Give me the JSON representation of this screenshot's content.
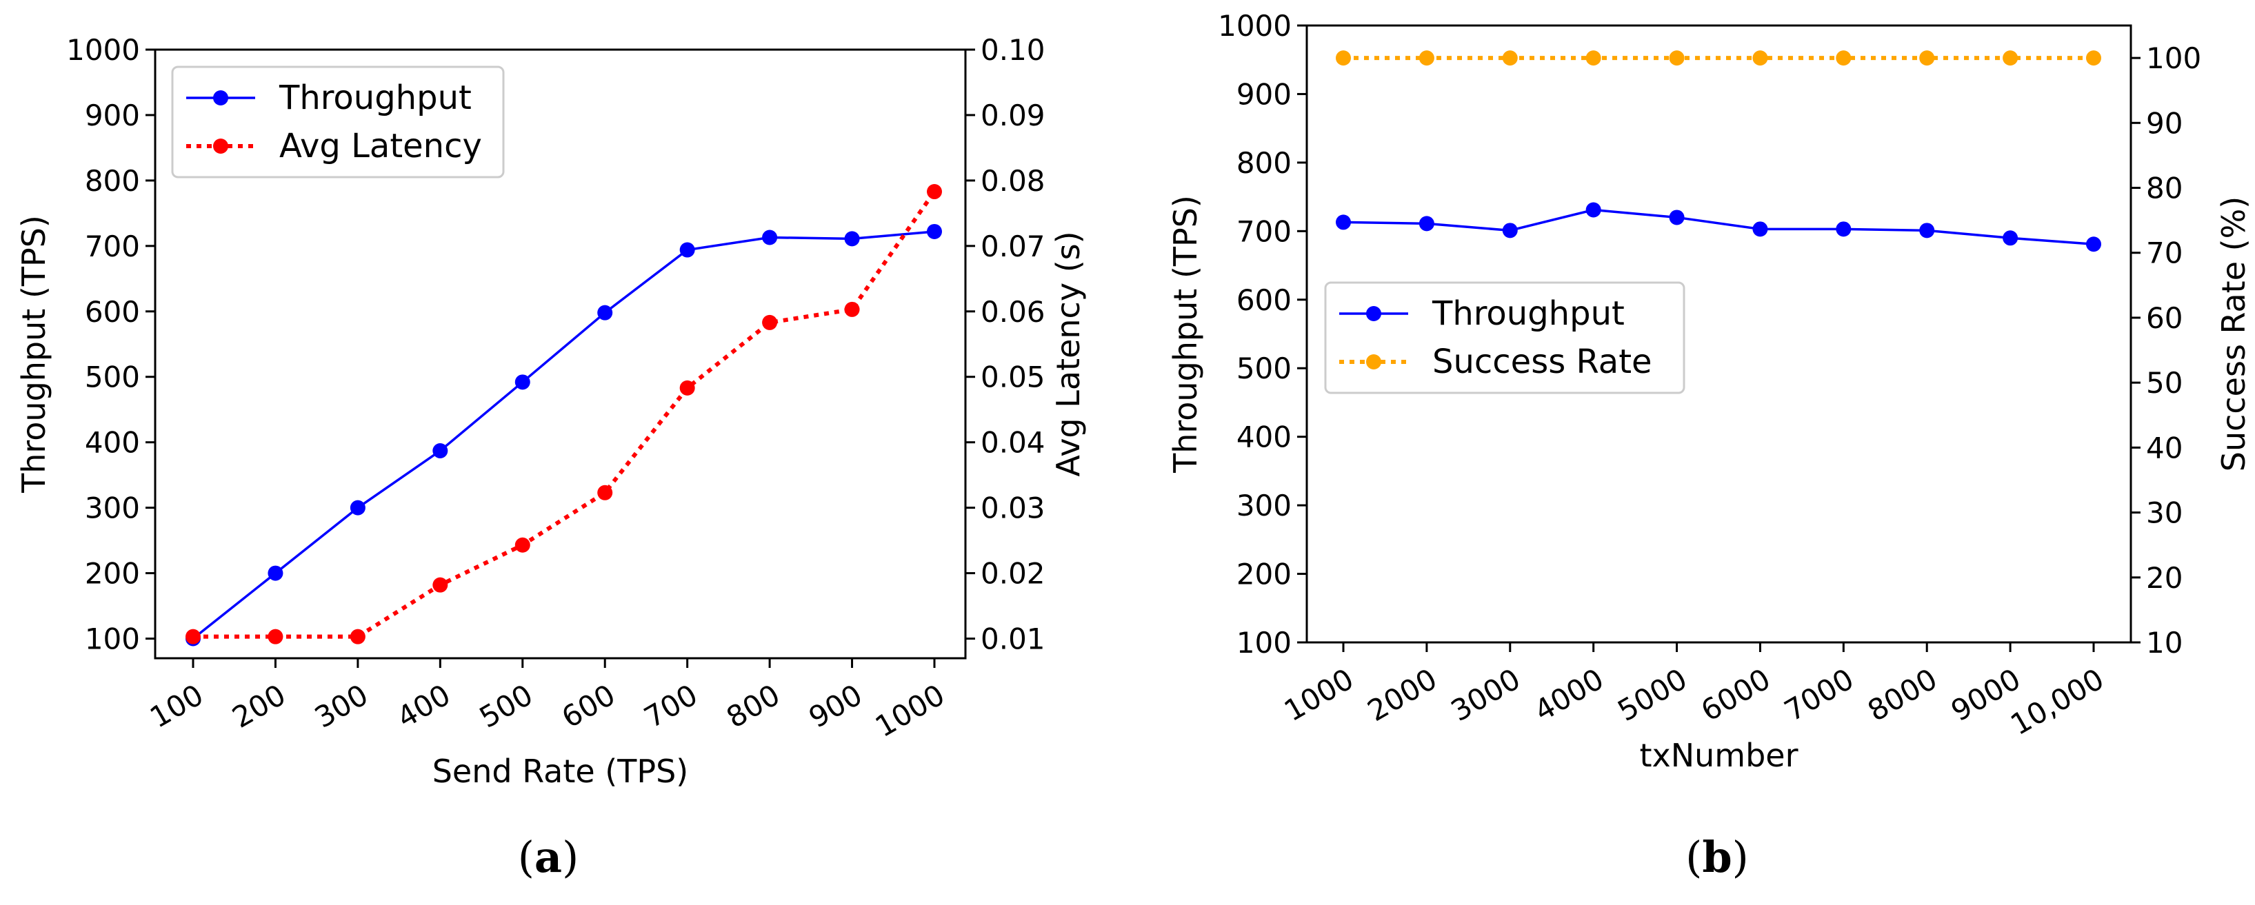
{
  "chart_data": [
    {
      "type": "line",
      "panel_label": "a",
      "xlabel": "Send Rate (TPS)",
      "ylabel": "Throughput (TPS)",
      "ylabel_right": "Avg Latency (s)",
      "x": [
        100,
        200,
        300,
        400,
        500,
        600,
        700,
        800,
        900,
        1000
      ],
      "x_tick_labels": [
        "100",
        "200",
        "300",
        "400",
        "500",
        "600",
        "700",
        "800",
        "900",
        "1000"
      ],
      "ylim": [
        70,
        1000
      ],
      "y_ticks": [
        100,
        200,
        300,
        400,
        500,
        600,
        700,
        800,
        900,
        1000
      ],
      "y_tick_labels": [
        "100",
        "200",
        "300",
        "400",
        "500",
        "600",
        "700",
        "800",
        "900",
        "1000"
      ],
      "ylim_right": [
        0.007,
        0.1
      ],
      "y_ticks_right": [
        0.01,
        0.02,
        0.03,
        0.04,
        0.05,
        0.06,
        0.07,
        0.08,
        0.09,
        0.1
      ],
      "y_tick_labels_right": [
        "0.01",
        "0.02",
        "0.03",
        "0.04",
        "0.05",
        "0.06",
        "0.07",
        "0.08",
        "0.09",
        "0.10"
      ],
      "legend_position": "top-left",
      "series": [
        {
          "name": "Throughput",
          "axis": "left",
          "color": "#0000ff",
          "style": "solid",
          "values": [
            100,
            200,
            300,
            387,
            492,
            598,
            694,
            713,
            711,
            722
          ]
        },
        {
          "name": "Avg Latency",
          "axis": "right",
          "color": "#ff0000",
          "style": "dotted",
          "values": [
            0.0103,
            0.0103,
            0.0103,
            0.0182,
            0.0243,
            0.0323,
            0.0483,
            0.0583,
            0.0603,
            0.0783
          ]
        }
      ]
    },
    {
      "type": "line",
      "panel_label": "b",
      "xlabel": "txNumber",
      "ylabel": "Throughput (TPS)",
      "ylabel_right": "Success Rate (%)",
      "x": [
        1000,
        2000,
        3000,
        4000,
        5000,
        6000,
        7000,
        8000,
        9000,
        10000
      ],
      "x_tick_labels": [
        "1000",
        "2000",
        "3000",
        "4000",
        "5000",
        "6000",
        "7000",
        "8000",
        "9000",
        "10,000"
      ],
      "ylim": [
        100,
        1000
      ],
      "y_ticks": [
        100,
        200,
        300,
        400,
        500,
        600,
        700,
        800,
        900,
        1000
      ],
      "y_tick_labels": [
        "100",
        "200",
        "300",
        "400",
        "500",
        "600",
        "700",
        "800",
        "900",
        "1000"
      ],
      "ylim_right": [
        10,
        105
      ],
      "y_ticks_right": [
        10,
        20,
        30,
        40,
        50,
        60,
        70,
        80,
        90,
        100
      ],
      "y_tick_labels_right": [
        "10",
        "20",
        "30",
        "40",
        "50",
        "60",
        "70",
        "80",
        "90",
        "100"
      ],
      "legend_position": "center-left",
      "series": [
        {
          "name": "Throughput",
          "axis": "left",
          "color": "#0000ff",
          "style": "solid",
          "values": [
            713,
            711,
            701,
            731,
            720,
            703,
            703,
            701,
            690,
            681
          ]
        },
        {
          "name": "Success Rate",
          "axis": "right",
          "color": "#ffa500",
          "style": "dotted",
          "values": [
            100,
            100,
            100,
            100,
            100,
            100,
            100,
            100,
            100,
            100
          ]
        }
      ]
    }
  ]
}
